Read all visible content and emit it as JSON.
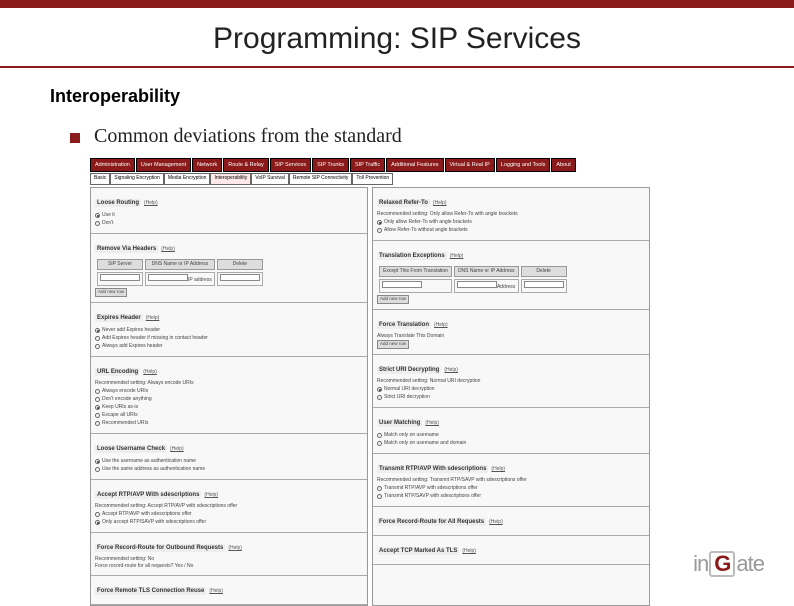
{
  "slide": {
    "title": "Programming: SIP Services",
    "heading": "Interoperability",
    "bullet": "Common deviations from the standard"
  },
  "colors": {
    "accent": "#8b1a1a",
    "text": "#222222",
    "bg": "#ffffff"
  },
  "typography": {
    "title_size_pt": 30,
    "heading_size_pt": 18,
    "bullet_size_pt": 20,
    "title_family": "Arial",
    "body_family": "Times New Roman"
  },
  "nav_tabs": [
    "Administration",
    "User Management",
    "Network",
    "Route & Relay",
    "SIP Services",
    "SIP Trunks",
    "SIP Traffic",
    "Additional Features",
    "Virtual & Real IP",
    "Logging and Tools",
    "About"
  ],
  "subnav_tabs": [
    "Basic",
    "Signaling Encryption",
    "Media Encryption",
    "Interoperability",
    "VoIP Survival",
    "Remote SIP Connectivity",
    "Toll Prevention"
  ],
  "subnav_active_index": 3,
  "left_panels": [
    {
      "heading": "Loose Routing",
      "help": "(Help)",
      "rows": [
        {
          "type": "radio",
          "checked": true,
          "label": "Use it"
        },
        {
          "type": "radio",
          "checked": false,
          "label": "Don't"
        }
      ]
    },
    {
      "heading": "Remove Via Headers",
      "help": "(Help)",
      "table": {
        "cols": [
          "SIP Server",
          "DNS Name or IP Address",
          "Delete"
        ],
        "rows": [
          [
            "",
            "IP address",
            ""
          ]
        ]
      },
      "btn": "Add new row"
    },
    {
      "heading": "Expires Header",
      "help": "(Help)",
      "rows": [
        {
          "type": "radio",
          "checked": true,
          "label": "Never add Expires header"
        },
        {
          "type": "radio",
          "checked": false,
          "label": "Add Expires header if missing in contact header"
        },
        {
          "type": "radio",
          "checked": false,
          "label": "Always add Expires header"
        }
      ]
    },
    {
      "heading": "URL Encoding",
      "help": "(Help)",
      "desc": "Recommended setting: Always encode URIs",
      "rows": [
        {
          "type": "radio",
          "checked": false,
          "label": "Always encode URIs"
        },
        {
          "type": "radio",
          "checked": false,
          "label": "Don't encode anything"
        },
        {
          "type": "radio",
          "checked": true,
          "label": "Keep URIs as-is"
        },
        {
          "type": "radio",
          "checked": false,
          "label": "Escape all URIs"
        },
        {
          "type": "radio",
          "checked": false,
          "label": "Recommended URIs"
        }
      ]
    },
    {
      "heading": "Loose Username Check",
      "help": "(Help)",
      "rows": [
        {
          "type": "radio",
          "checked": true,
          "label": "Use the username as authentication name"
        },
        {
          "type": "radio",
          "checked": false,
          "label": "Use the same address as authentication name"
        }
      ]
    },
    {
      "heading": "Accept RTP/AVP With sdescriptions",
      "help": "(Help)",
      "desc": "Recommended setting: Accept RTP/AVP with sdescriptions offer",
      "rows": [
        {
          "type": "radio",
          "checked": false,
          "label": "Accept RTP/AVP with sdescriptions offer"
        },
        {
          "type": "radio",
          "checked": true,
          "label": "Only accept RTP/SAVP with sdescriptions offer"
        }
      ]
    },
    {
      "heading": "Force Record-Route for Outbound Requests",
      "help": "(Help)",
      "desc": "Recommended setting: No",
      "opts": "Force record-route for all requests? Yes / No"
    },
    {
      "heading": "Force Remote TLS Connection Reuse",
      "help": "(Help)"
    }
  ],
  "right_panels": [
    {
      "heading": "Relaxed Refer-To",
      "help": "(Help)",
      "desc": "Recommended setting: Only allow Refer-To with angle brackets",
      "rows": [
        {
          "type": "radio",
          "checked": true,
          "label": "Only allow Refer-To with angle brackets"
        },
        {
          "type": "radio",
          "checked": false,
          "label": "Allow Refer-To without angle brackets"
        }
      ]
    },
    {
      "heading": "Translation Exceptions",
      "help": "(Help)",
      "table": {
        "cols": [
          "Except This From Translation",
          "DNS Name or IP Address",
          "Delete"
        ],
        "rows": [
          [
            "",
            "Address",
            ""
          ]
        ]
      },
      "btn": "Add new row"
    },
    {
      "heading": "Force Translation",
      "help": "(Help)",
      "sub": "Always Translate This Domain",
      "btn": "Add new row"
    },
    {
      "heading": "Strict URI Decrypting",
      "help": "(Help)",
      "desc": "Recommended setting: Normal URI decryption",
      "rows": [
        {
          "type": "radio",
          "checked": true,
          "label": "Normal URI decryption"
        },
        {
          "type": "radio",
          "checked": false,
          "label": "Strict URI decryption"
        }
      ]
    },
    {
      "heading": "User Matching",
      "help": "(Help)",
      "rows": [
        {
          "type": "radio",
          "checked": false,
          "label": "Match only on username"
        },
        {
          "type": "radio",
          "checked": false,
          "label": "Match only on username and domain"
        }
      ]
    },
    {
      "heading": "Transmit RTP/AVP With sdescriptions",
      "help": "(Help)",
      "desc": "Recommended setting: Transmit RTP/SAVP with sdescriptions offer",
      "rows": [
        {
          "type": "radio",
          "checked": false,
          "label": "Transmit RTP/AVP with sdescriptions offer"
        },
        {
          "type": "radio",
          "checked": false,
          "label": "Transmit RTP/SAVP with sdescriptions offer"
        }
      ]
    },
    {
      "heading": "Force Record-Route for All Requests",
      "help": "(Help)"
    },
    {
      "heading": "Accept TCP Marked As TLS",
      "help": "(Help)"
    }
  ],
  "logo": {
    "prefix": "in",
    "g": "G",
    "suffix": "ate"
  }
}
